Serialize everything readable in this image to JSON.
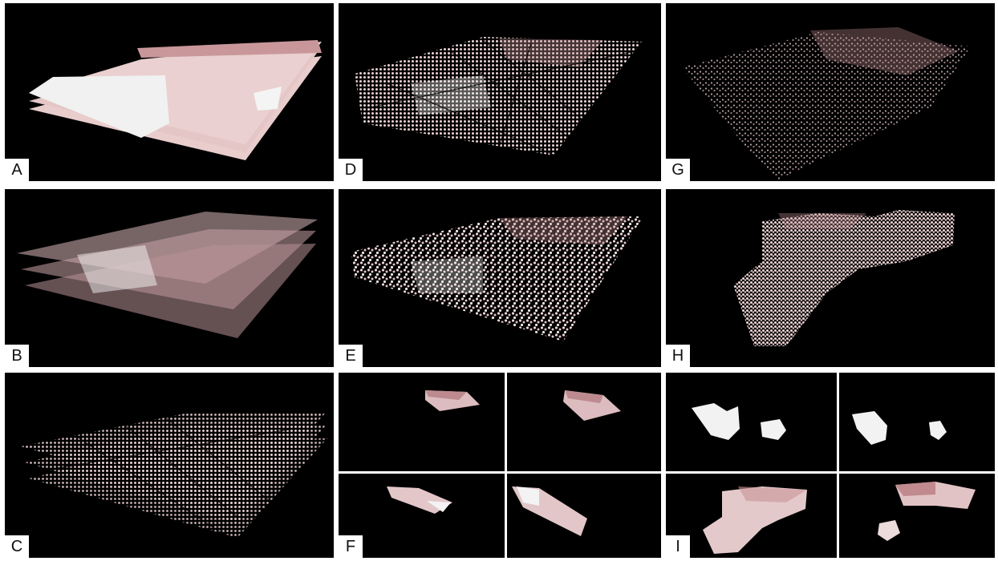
{
  "figure": {
    "panels": [
      {
        "id": "A",
        "label": "A"
      },
      {
        "id": "B",
        "label": "B"
      },
      {
        "id": "C",
        "label": "C"
      },
      {
        "id": "D",
        "label": "D"
      },
      {
        "id": "E",
        "label": "E"
      },
      {
        "id": "F",
        "label": "F"
      },
      {
        "id": "G",
        "label": "G"
      },
      {
        "id": "H",
        "label": "H"
      },
      {
        "id": "I",
        "label": "I"
      }
    ],
    "colors": {
      "background": "#000000",
      "pink": "#e8c9c9",
      "rose": "#c99a9c",
      "white": "#f2f2f2"
    }
  }
}
